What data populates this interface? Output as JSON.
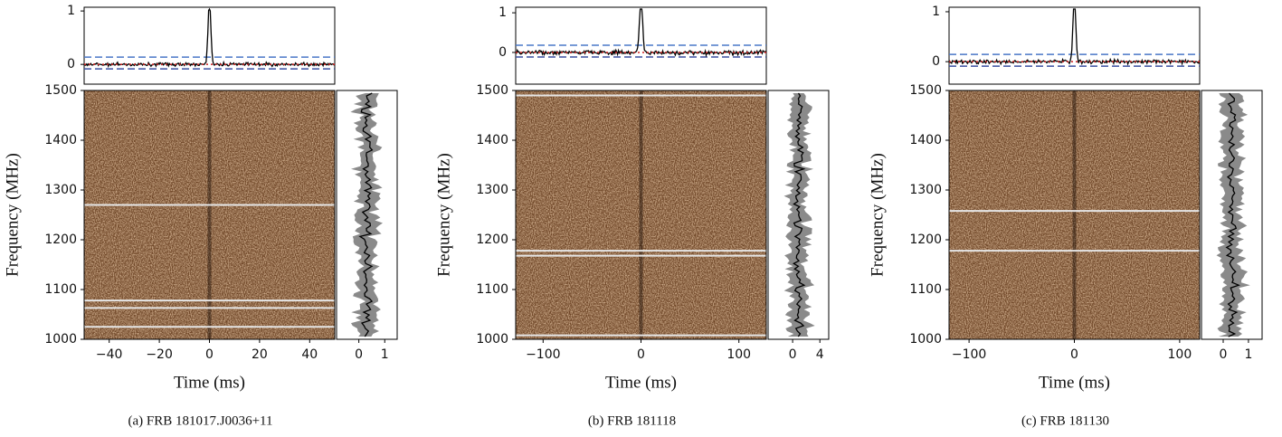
{
  "chart_data": [
    {
      "type": "waterfall",
      "caption": "(a) FRB 181017.J0036+11",
      "xlabel": "Time (ms)",
      "ylabel": "Frequency (MHz)",
      "xlim": [
        -50,
        50
      ],
      "xticks": [
        {
          "value": -40,
          "label": "−40"
        },
        {
          "value": -20,
          "label": "−20"
        },
        0,
        20,
        40
      ],
      "ylim": [
        1000,
        1500
      ],
      "yticks": [
        1000,
        1100,
        1200,
        1300,
        1400,
        1500
      ],
      "profile_ylim": [
        -0.37,
        1.07
      ],
      "profile_yticks": [
        0,
        1
      ],
      "spectrum_xlim": [
        -0.86,
        1.48
      ],
      "spectrum_xticks": [
        0,
        1
      ],
      "flagged_channels": [
        1270,
        1078,
        1063,
        1025
      ],
      "flag_color": "#e6e6e6"
    },
    {
      "type": "waterfall",
      "caption": "(b) FRB 181118",
      "xlabel": "Time (ms)",
      "ylabel": "Frequency (MHz)",
      "xlim": [
        -128,
        128
      ],
      "xticks": [
        {
          "value": -100,
          "label": "−100"
        },
        0,
        100
      ],
      "ylim": [
        1000,
        1500
      ],
      "yticks": [
        1000,
        1100,
        1200,
        1300,
        1400,
        1500
      ],
      "profile_ylim": [
        -0.8,
        1.14
      ],
      "profile_yticks": [
        0,
        1
      ],
      "spectrum_xlim": [
        -3.6,
        5.3
      ],
      "spectrum_xticks": [
        0,
        4
      ],
      "flagged_channels": [
        1490,
        1178,
        1168,
        1008
      ],
      "flag_color": "#e6e6e6"
    },
    {
      "type": "waterfall",
      "caption": "(c) FRB 181130",
      "xlabel": "Time (ms)",
      "ylabel": "Frequency (MHz)",
      "xlim": [
        -119,
        119
      ],
      "xticks": [
        {
          "value": -100,
          "label": "−100"
        },
        0,
        100
      ],
      "ylim": [
        1000,
        1500
      ],
      "yticks": [
        1000,
        1100,
        1200,
        1300,
        1400,
        1500
      ],
      "profile_ylim": [
        -0.45,
        1.09
      ],
      "profile_yticks": [
        0,
        1
      ],
      "spectrum_xlim": [
        -0.86,
        1.54
      ],
      "spectrum_xticks": [
        0,
        1
      ],
      "flagged_channels": [
        1258,
        1178
      ],
      "flag_color": "#e6e6e6"
    }
  ]
}
